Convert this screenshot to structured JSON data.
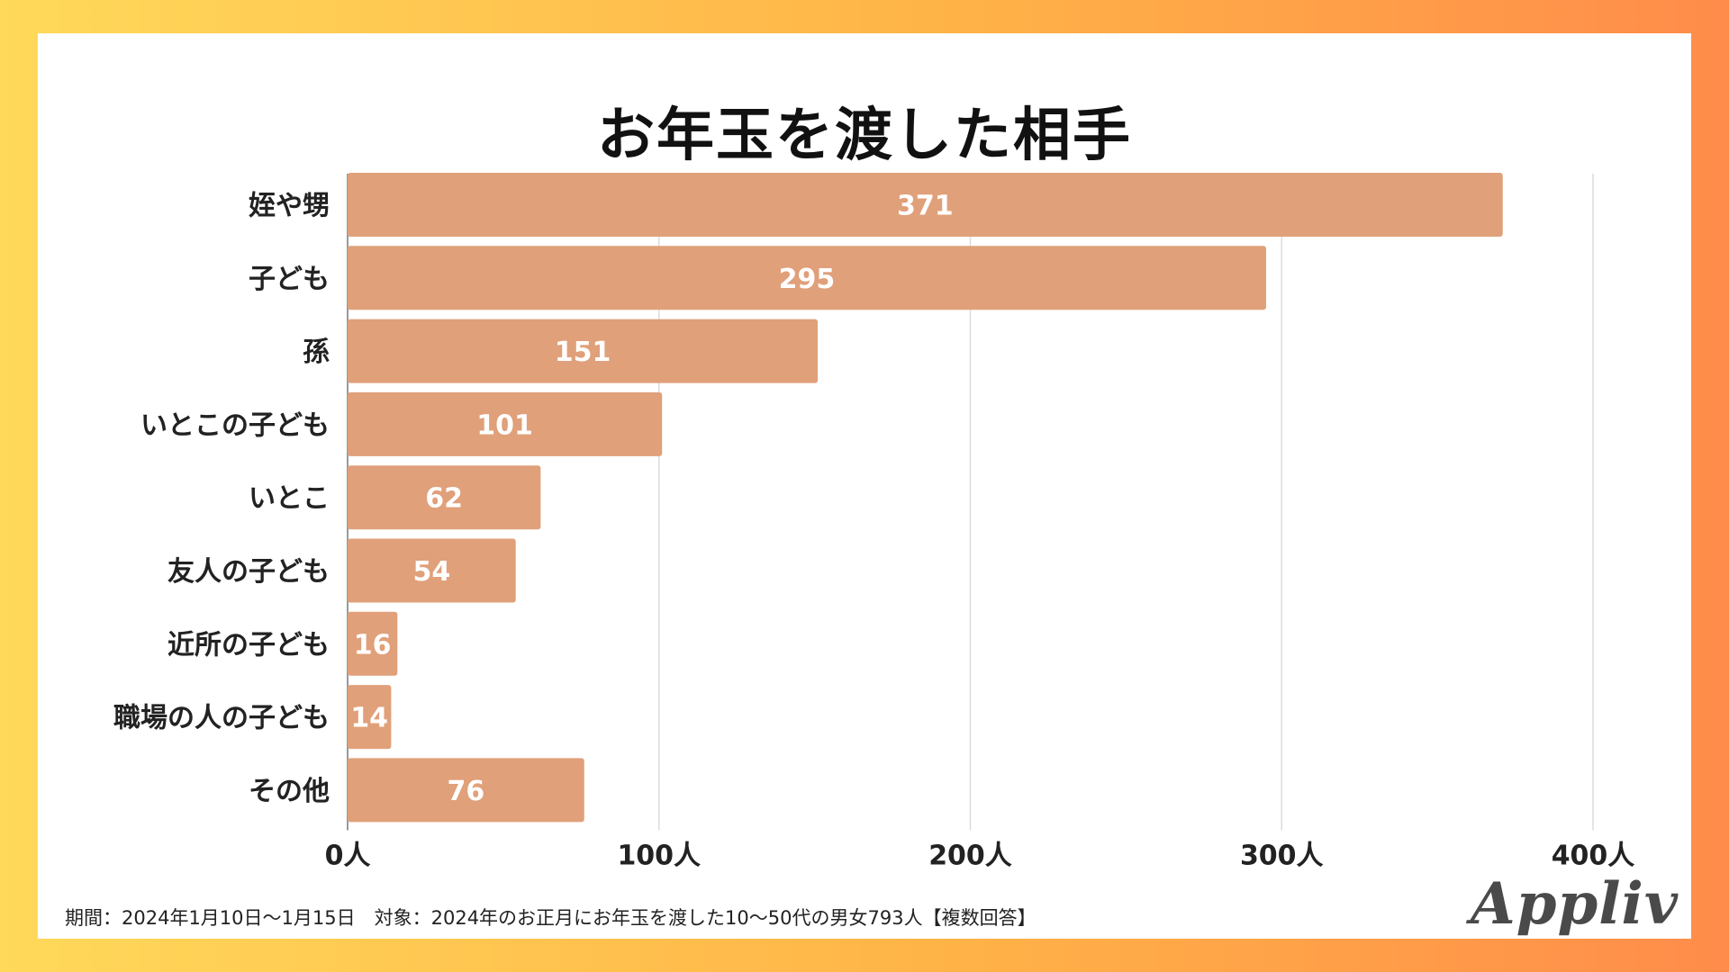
{
  "chart_data": {
    "type": "bar",
    "orientation": "horizontal",
    "title": "お年玉を渡した相手",
    "categories": [
      "姪や甥",
      "子ども",
      "孫",
      "いとこの子ども",
      "いとこ",
      "友人の子ども",
      "近所の子ども",
      "職場の人の子ども",
      "その他"
    ],
    "values": [
      371,
      295,
      151,
      101,
      62,
      54,
      16,
      14,
      76
    ],
    "xlim": [
      0,
      400
    ],
    "xticks": [
      0,
      100,
      200,
      300,
      400
    ],
    "tick_suffix": "人",
    "grid": true,
    "bar_color": "#e0a07a",
    "label_color": "#ffffff"
  },
  "footnote": "期間：2024年1月10日～1月15日　対象：2024年のお正月にお年玉を渡した10～50代の男女793人【複数回答】",
  "brand": "Appliv"
}
